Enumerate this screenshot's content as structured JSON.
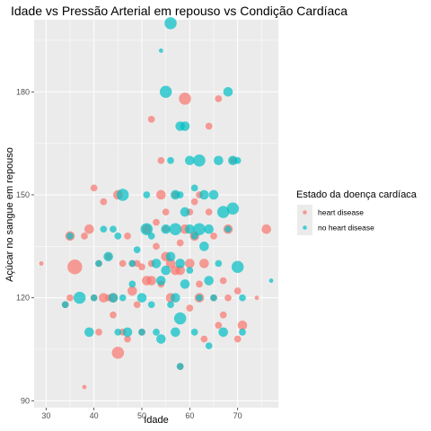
{
  "chart_data": {
    "type": "scatter",
    "title": "Idade vs Pressão Arterial em repouso vs Condição Cardíaca",
    "xlabel": "Idade",
    "ylabel": "Açúcar no sangue em repouso",
    "xlim": [
      27.5,
      78.5
    ],
    "ylim": [
      88,
      201
    ],
    "x_ticks": [
      30,
      40,
      50,
      60,
      70
    ],
    "y_ticks": [
      90,
      120,
      150,
      180
    ],
    "grid": true,
    "legend": {
      "title": "Estado da doença cardíaca",
      "position": "right",
      "entries": [
        {
          "label": "heart disease",
          "color": "#F8766D"
        },
        {
          "label": "no heart disease",
          "color": "#00BFC4"
        }
      ]
    },
    "series": [
      {
        "name": "heart disease",
        "color": "#F8766D",
        "points": [
          {
            "x": 29,
            "y": 130,
            "s": 1
          },
          {
            "x": 34,
            "y": 118,
            "s": 2
          },
          {
            "x": 35,
            "y": 120,
            "s": 2
          },
          {
            "x": 35,
            "y": 138,
            "s": 3
          },
          {
            "x": 36,
            "y": 129,
            "s": 5
          },
          {
            "x": 38,
            "y": 94,
            "s": 1
          },
          {
            "x": 38,
            "y": 138,
            "s": 2
          },
          {
            "x": 39,
            "y": 140,
            "s": 3
          },
          {
            "x": 40,
            "y": 152,
            "s": 2
          },
          {
            "x": 40,
            "y": 120,
            "s": 2
          },
          {
            "x": 41,
            "y": 110,
            "s": 2
          },
          {
            "x": 41,
            "y": 130,
            "s": 2
          },
          {
            "x": 42,
            "y": 120,
            "s": 3
          },
          {
            "x": 42,
            "y": 148,
            "s": 2
          },
          {
            "x": 43,
            "y": 132,
            "s": 2
          },
          {
            "x": 43,
            "y": 120,
            "s": 2
          },
          {
            "x": 44,
            "y": 120,
            "s": 3
          },
          {
            "x": 44,
            "y": 115,
            "s": 2
          },
          {
            "x": 45,
            "y": 104,
            "s": 4
          },
          {
            "x": 45,
            "y": 150,
            "s": 3
          },
          {
            "x": 46,
            "y": 110,
            "s": 2
          },
          {
            "x": 46,
            "y": 130,
            "s": 2
          },
          {
            "x": 47,
            "y": 108,
            "s": 2
          },
          {
            "x": 47,
            "y": 138,
            "s": 2
          },
          {
            "x": 48,
            "y": 130,
            "s": 2
          },
          {
            "x": 48,
            "y": 122,
            "s": 3
          },
          {
            "x": 49,
            "y": 118,
            "s": 2
          },
          {
            "x": 49,
            "y": 130,
            "s": 2
          },
          {
            "x": 50,
            "y": 129,
            "s": 2
          },
          {
            "x": 50,
            "y": 110,
            "s": 2
          },
          {
            "x": 51,
            "y": 125,
            "s": 3
          },
          {
            "x": 51,
            "y": 140,
            "s": 3
          },
          {
            "x": 52,
            "y": 125,
            "s": 3
          },
          {
            "x": 52,
            "y": 172,
            "s": 2
          },
          {
            "x": 52,
            "y": 130,
            "s": 2
          },
          {
            "x": 53,
            "y": 135,
            "s": 2
          },
          {
            "x": 53,
            "y": 142,
            "s": 2
          },
          {
            "x": 54,
            "y": 160,
            "s": 2
          },
          {
            "x": 54,
            "y": 124,
            "s": 2
          },
          {
            "x": 54,
            "y": 150,
            "s": 3
          },
          {
            "x": 55,
            "y": 140,
            "s": 2
          },
          {
            "x": 55,
            "y": 132,
            "s": 3
          },
          {
            "x": 55,
            "y": 145,
            "s": 2
          },
          {
            "x": 56,
            "y": 130,
            "s": 3
          },
          {
            "x": 56,
            "y": 120,
            "s": 3
          },
          {
            "x": 57,
            "y": 128,
            "s": 3
          },
          {
            "x": 57,
            "y": 150,
            "s": 2
          },
          {
            "x": 58,
            "y": 100,
            "s": 2
          },
          {
            "x": 58,
            "y": 128,
            "s": 3
          },
          {
            "x": 58,
            "y": 136,
            "s": 2
          },
          {
            "x": 59,
            "y": 178,
            "s": 4
          },
          {
            "x": 59,
            "y": 140,
            "s": 3
          },
          {
            "x": 60,
            "y": 130,
            "s": 3
          },
          {
            "x": 60,
            "y": 117,
            "s": 2
          },
          {
            "x": 60,
            "y": 145,
            "s": 2
          },
          {
            "x": 61,
            "y": 138,
            "s": 3
          },
          {
            "x": 61,
            "y": 148,
            "s": 2
          },
          {
            "x": 62,
            "y": 120,
            "s": 3
          },
          {
            "x": 62,
            "y": 124,
            "s": 2
          },
          {
            "x": 62,
            "y": 150,
            "s": 2
          },
          {
            "x": 63,
            "y": 130,
            "s": 3
          },
          {
            "x": 63,
            "y": 108,
            "s": 2
          },
          {
            "x": 64,
            "y": 170,
            "s": 2
          },
          {
            "x": 64,
            "y": 145,
            "s": 2
          },
          {
            "x": 65,
            "y": 120,
            "s": 2
          },
          {
            "x": 65,
            "y": 138,
            "s": 2
          },
          {
            "x": 66,
            "y": 112,
            "s": 2
          },
          {
            "x": 66,
            "y": 178,
            "s": 2
          },
          {
            "x": 67,
            "y": 125,
            "s": 2
          },
          {
            "x": 67,
            "y": 115,
            "s": 2
          },
          {
            "x": 68,
            "y": 140,
            "s": 3
          },
          {
            "x": 68,
            "y": 120,
            "s": 2
          },
          {
            "x": 69,
            "y": 160,
            "s": 2
          },
          {
            "x": 70,
            "y": 122,
            "s": 2
          },
          {
            "x": 70,
            "y": 108,
            "s": 2
          },
          {
            "x": 71,
            "y": 112,
            "s": 3
          },
          {
            "x": 74,
            "y": 120,
            "s": 1
          },
          {
            "x": 76,
            "y": 140,
            "s": 3
          }
        ]
      },
      {
        "name": "no heart disease",
        "color": "#00BFC4",
        "points": [
          {
            "x": 34,
            "y": 118,
            "s": 2
          },
          {
            "x": 35,
            "y": 138,
            "s": 2
          },
          {
            "x": 37,
            "y": 120,
            "s": 4
          },
          {
            "x": 39,
            "y": 110,
            "s": 3
          },
          {
            "x": 40,
            "y": 120,
            "s": 2
          },
          {
            "x": 41,
            "y": 130,
            "s": 2
          },
          {
            "x": 42,
            "y": 140,
            "s": 2
          },
          {
            "x": 43,
            "y": 132,
            "s": 3
          },
          {
            "x": 44,
            "y": 140,
            "s": 2
          },
          {
            "x": 44,
            "y": 120,
            "s": 3
          },
          {
            "x": 45,
            "y": 110,
            "s": 2
          },
          {
            "x": 45,
            "y": 138,
            "s": 2
          },
          {
            "x": 46,
            "y": 150,
            "s": 4
          },
          {
            "x": 46,
            "y": 120,
            "s": 2
          },
          {
            "x": 47,
            "y": 110,
            "s": 3
          },
          {
            "x": 48,
            "y": 130,
            "s": 2
          },
          {
            "x": 48,
            "y": 124,
            "s": 2
          },
          {
            "x": 49,
            "y": 134,
            "s": 2
          },
          {
            "x": 50,
            "y": 120,
            "s": 3
          },
          {
            "x": 50,
            "y": 110,
            "s": 2
          },
          {
            "x": 51,
            "y": 140,
            "s": 4
          },
          {
            "x": 51,
            "y": 150,
            "s": 2
          },
          {
            "x": 52,
            "y": 138,
            "s": 2
          },
          {
            "x": 52,
            "y": 118,
            "s": 2
          },
          {
            "x": 53,
            "y": 130,
            "s": 3
          },
          {
            "x": 53,
            "y": 110,
            "s": 2
          },
          {
            "x": 54,
            "y": 192,
            "s": 1
          },
          {
            "x": 54,
            "y": 125,
            "s": 3
          },
          {
            "x": 54,
            "y": 108,
            "s": 3
          },
          {
            "x": 55,
            "y": 180,
            "s": 4
          },
          {
            "x": 55,
            "y": 140,
            "s": 3
          },
          {
            "x": 55,
            "y": 128,
            "s": 3
          },
          {
            "x": 56,
            "y": 200,
            "s": 4
          },
          {
            "x": 56,
            "y": 160,
            "s": 2
          },
          {
            "x": 56,
            "y": 132,
            "s": 3
          },
          {
            "x": 56,
            "y": 118,
            "s": 2
          },
          {
            "x": 57,
            "y": 150,
            "s": 3
          },
          {
            "x": 57,
            "y": 140,
            "s": 4
          },
          {
            "x": 57,
            "y": 120,
            "s": 3
          },
          {
            "x": 57,
            "y": 110,
            "s": 3
          },
          {
            "x": 58,
            "y": 170,
            "s": 3
          },
          {
            "x": 58,
            "y": 150,
            "s": 2
          },
          {
            "x": 58,
            "y": 130,
            "s": 3
          },
          {
            "x": 58,
            "y": 114,
            "s": 4
          },
          {
            "x": 58,
            "y": 100,
            "s": 2
          },
          {
            "x": 59,
            "y": 170,
            "s": 3
          },
          {
            "x": 59,
            "y": 145,
            "s": 3
          },
          {
            "x": 59,
            "y": 124,
            "s": 3
          },
          {
            "x": 60,
            "y": 160,
            "s": 3
          },
          {
            "x": 60,
            "y": 140,
            "s": 3
          },
          {
            "x": 60,
            "y": 128,
            "s": 2
          },
          {
            "x": 61,
            "y": 152,
            "s": 2
          },
          {
            "x": 61,
            "y": 138,
            "s": 2
          },
          {
            "x": 61,
            "y": 110,
            "s": 2
          },
          {
            "x": 62,
            "y": 160,
            "s": 4
          },
          {
            "x": 62,
            "y": 140,
            "s": 4
          },
          {
            "x": 62,
            "y": 120,
            "s": 2
          },
          {
            "x": 63,
            "y": 150,
            "s": 3
          },
          {
            "x": 63,
            "y": 135,
            "s": 3
          },
          {
            "x": 64,
            "y": 140,
            "s": 3
          },
          {
            "x": 64,
            "y": 125,
            "s": 3
          },
          {
            "x": 64,
            "y": 106,
            "s": 2
          },
          {
            "x": 65,
            "y": 150,
            "s": 3
          },
          {
            "x": 65,
            "y": 120,
            "s": 2
          },
          {
            "x": 66,
            "y": 160,
            "s": 3
          },
          {
            "x": 66,
            "y": 130,
            "s": 2
          },
          {
            "x": 67,
            "y": 145,
            "s": 4
          },
          {
            "x": 67,
            "y": 110,
            "s": 3
          },
          {
            "x": 68,
            "y": 180,
            "s": 3
          },
          {
            "x": 68,
            "y": 140,
            "s": 2
          },
          {
            "x": 69,
            "y": 160,
            "s": 3
          },
          {
            "x": 69,
            "y": 146,
            "s": 4
          },
          {
            "x": 70,
            "y": 129,
            "s": 4
          },
          {
            "x": 70,
            "y": 160,
            "s": 2
          },
          {
            "x": 71,
            "y": 120,
            "s": 2
          },
          {
            "x": 71,
            "y": 110,
            "s": 2
          },
          {
            "x": 77,
            "y": 125,
            "s": 1
          }
        ]
      }
    ]
  }
}
